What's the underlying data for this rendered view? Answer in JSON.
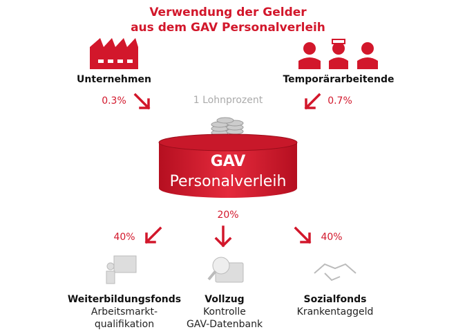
{
  "title": [
    "Verwendung der Gelder",
    "aus dem GAV Personalverleih"
  ],
  "sources": [
    {
      "label": "Unternehmen",
      "share": "0.3%"
    },
    {
      "label": "Temporärarbeitende",
      "share": "0.7%"
    }
  ],
  "contribution_note": "1 Lohnprozent",
  "fund": {
    "line1": "GAV",
    "line2": "Personalverleih"
  },
  "allocations": [
    {
      "share": "40%",
      "title": "Weiterbildungsfonds",
      "lines": [
        "Arbeitsmarkt-",
        "qualifikation"
      ]
    },
    {
      "share": "20%",
      "title": "Vollzug",
      "lines": [
        "Kontrolle",
        "GAV-Datenbank"
      ]
    },
    {
      "share": "40%",
      "title": "Sozialfonds",
      "lines": [
        "Krankentaggeld"
      ]
    }
  ]
}
